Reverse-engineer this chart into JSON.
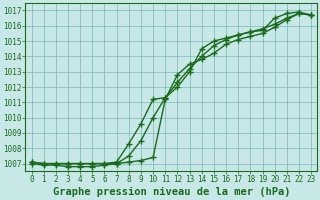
{
  "title": "Graphe pression niveau de la mer (hPa)",
  "xlabel_hours": [
    0,
    1,
    2,
    3,
    4,
    5,
    6,
    7,
    8,
    9,
    10,
    11,
    12,
    13,
    14,
    15,
    16,
    17,
    18,
    19,
    20,
    21,
    22,
    23
  ],
  "series1": [
    1007.0,
    1006.9,
    1006.9,
    1006.8,
    1006.8,
    1006.8,
    1006.9,
    1007.0,
    1007.5,
    1008.5,
    1010.0,
    1011.3,
    1012.3,
    1013.2,
    1014.0,
    1014.7,
    1015.1,
    1015.4,
    1015.6,
    1015.8,
    1016.1,
    1016.5,
    1016.8,
    1016.7
  ],
  "series2": [
    1007.1,
    1007.0,
    1007.0,
    1007.0,
    1007.0,
    1007.0,
    1007.0,
    1007.1,
    1008.3,
    1009.6,
    1011.2,
    1011.3,
    1012.0,
    1013.0,
    1014.5,
    1015.0,
    1015.2,
    1015.4,
    1015.6,
    1015.7,
    1016.5,
    1016.8,
    1016.9,
    1016.7
  ],
  "series3": [
    1007.1,
    1007.0,
    1007.0,
    1007.0,
    1007.0,
    1007.0,
    1007.0,
    1007.0,
    1007.1,
    1007.2,
    1007.4,
    1011.2,
    1012.8,
    1013.5,
    1013.8,
    1014.2,
    1014.8,
    1015.1,
    1015.3,
    1015.5,
    1015.9,
    1016.4,
    1016.8,
    1016.7
  ],
  "line_color": "#1a6b1a",
  "bg_color": "#c8e8e8",
  "grid_color": "#7ab8b8",
  "text_color": "#1a6b1a",
  "ylim": [
    1006.5,
    1017.5
  ],
  "yticks": [
    1007,
    1008,
    1009,
    1010,
    1011,
    1012,
    1013,
    1014,
    1015,
    1016,
    1017
  ],
  "marker": "+",
  "marker_size": 4,
  "linewidth": 1.0,
  "title_fontsize": 7.5,
  "tick_fontsize": 5.5
}
